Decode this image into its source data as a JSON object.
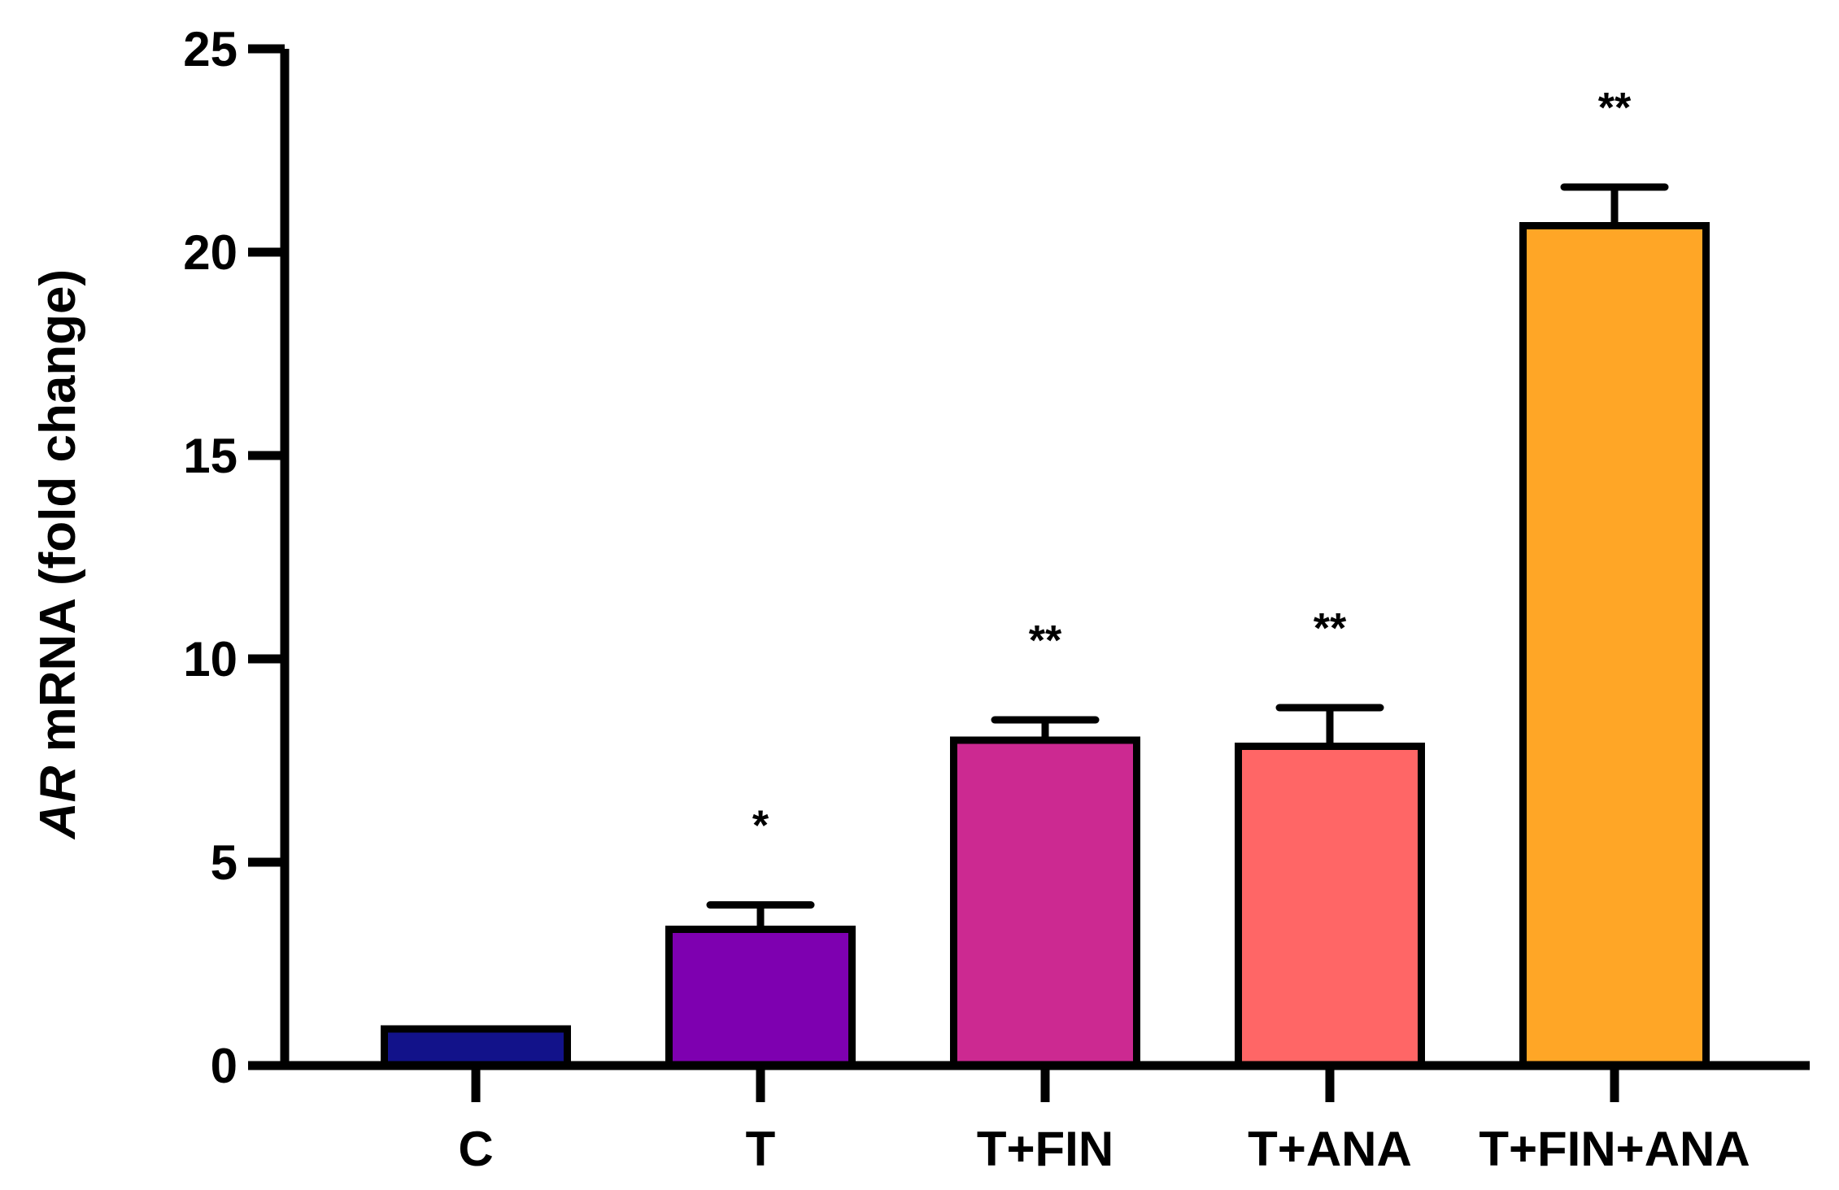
{
  "chart_data": {
    "type": "bar",
    "categories": [
      "C",
      "T",
      "T+FIN",
      "T+ANA",
      "T+FIN+ANA"
    ],
    "values": [
      0.9,
      3.35,
      8.0,
      7.85,
      20.65
    ],
    "errors": [
      0.0,
      0.6,
      0.5,
      0.95,
      0.95
    ],
    "significance": [
      "",
      "*",
      "**",
      "**",
      "**"
    ],
    "colors": [
      "#12128a",
      "#7e00b0",
      "#cc2991",
      "#ff6666",
      "#ffa626"
    ],
    "ylabel": {
      "italic_part": "AR",
      "rest": " mRNA (fold change)"
    },
    "xlabel": "",
    "ylim": [
      0,
      25
    ],
    "yticks": [
      "0",
      "5",
      "10",
      "15",
      "20",
      "25"
    ],
    "grid": false,
    "legend": "none"
  }
}
